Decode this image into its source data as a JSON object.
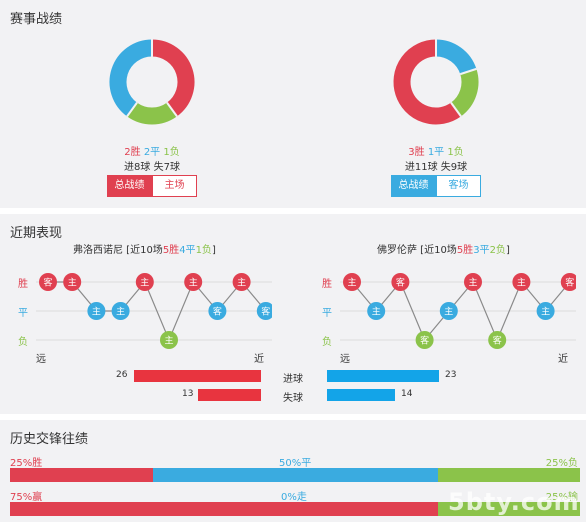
{
  "colors": {
    "win": "#e04050",
    "draw": "#3aabe0",
    "loss": "#8bc34a",
    "bar_home": "#e8343f",
    "bar_away": "#13a4e8"
  },
  "record": {
    "title": "赛事战绩",
    "left": {
      "w": "2胜",
      "d": "2平",
      "l": "1负",
      "goals": "进8球  失7球",
      "tab_active": "总战绩",
      "tab_other": "主场",
      "donut": [
        {
          "label": "win",
          "value": 2
        },
        {
          "label": "loss",
          "value": 1
        },
        {
          "label": "draw",
          "value": 2
        }
      ]
    },
    "right": {
      "w": "3胜",
      "d": "1平",
      "l": "1负",
      "goals": "进11球  失9球",
      "tab_active": "总战绩",
      "tab_other": "客场",
      "donut": [
        {
          "label": "draw",
          "value": 1
        },
        {
          "label": "loss",
          "value": 1
        },
        {
          "label": "win",
          "value": 3
        }
      ]
    }
  },
  "recent": {
    "title": "近期表现",
    "ylabels": {
      "win": "胜",
      "draw": "平",
      "loss": "负"
    },
    "xlabels": {
      "far": "远",
      "near": "近"
    },
    "left": {
      "name_pre": "弗洛西诺尼 [近10场",
      "w": "5胜",
      "d": "4平",
      "l": "1负",
      "name_post": "]",
      "matches": [
        {
          "venue": "客",
          "result": "win"
        },
        {
          "venue": "主",
          "result": "win"
        },
        {
          "venue": "主",
          "result": "draw"
        },
        {
          "venue": "主",
          "result": "draw"
        },
        {
          "venue": "主",
          "result": "win"
        },
        {
          "venue": "主",
          "result": "loss"
        },
        {
          "venue": "主",
          "result": "win"
        },
        {
          "venue": "客",
          "result": "draw"
        },
        {
          "venue": "主",
          "result": "win"
        },
        {
          "venue": "客",
          "result": "draw"
        }
      ]
    },
    "right": {
      "name_pre": "佛罗伦萨 [近10场",
      "w": "5胜",
      "d": "3平",
      "l": "2负",
      "name_post": "]",
      "matches": [
        {
          "venue": "主",
          "result": "win"
        },
        {
          "venue": "主",
          "result": "draw"
        },
        {
          "venue": "客",
          "result": "win"
        },
        {
          "venue": "客",
          "result": "loss"
        },
        {
          "venue": "主",
          "result": "draw"
        },
        {
          "venue": "主",
          "result": "win"
        },
        {
          "venue": "客",
          "result": "loss"
        },
        {
          "venue": "主",
          "result": "win"
        },
        {
          "venue": "主",
          "result": "draw"
        },
        {
          "venue": "客",
          "result": "win"
        }
      ]
    },
    "bars": [
      {
        "label": "进球",
        "home": 26,
        "away": 23
      },
      {
        "label": "失球",
        "home": 13,
        "away": 14
      }
    ]
  },
  "history": {
    "title": "历史交锋往绩",
    "row1": {
      "left": "25%胜",
      "mid": "50%平",
      "right": "25%负",
      "values": [
        25,
        50,
        25
      ]
    },
    "row2": {
      "left": "75%赢",
      "mid": "0%走",
      "right": "25%输",
      "values": [
        75,
        0,
        25
      ]
    }
  },
  "watermark": "5bty.com"
}
